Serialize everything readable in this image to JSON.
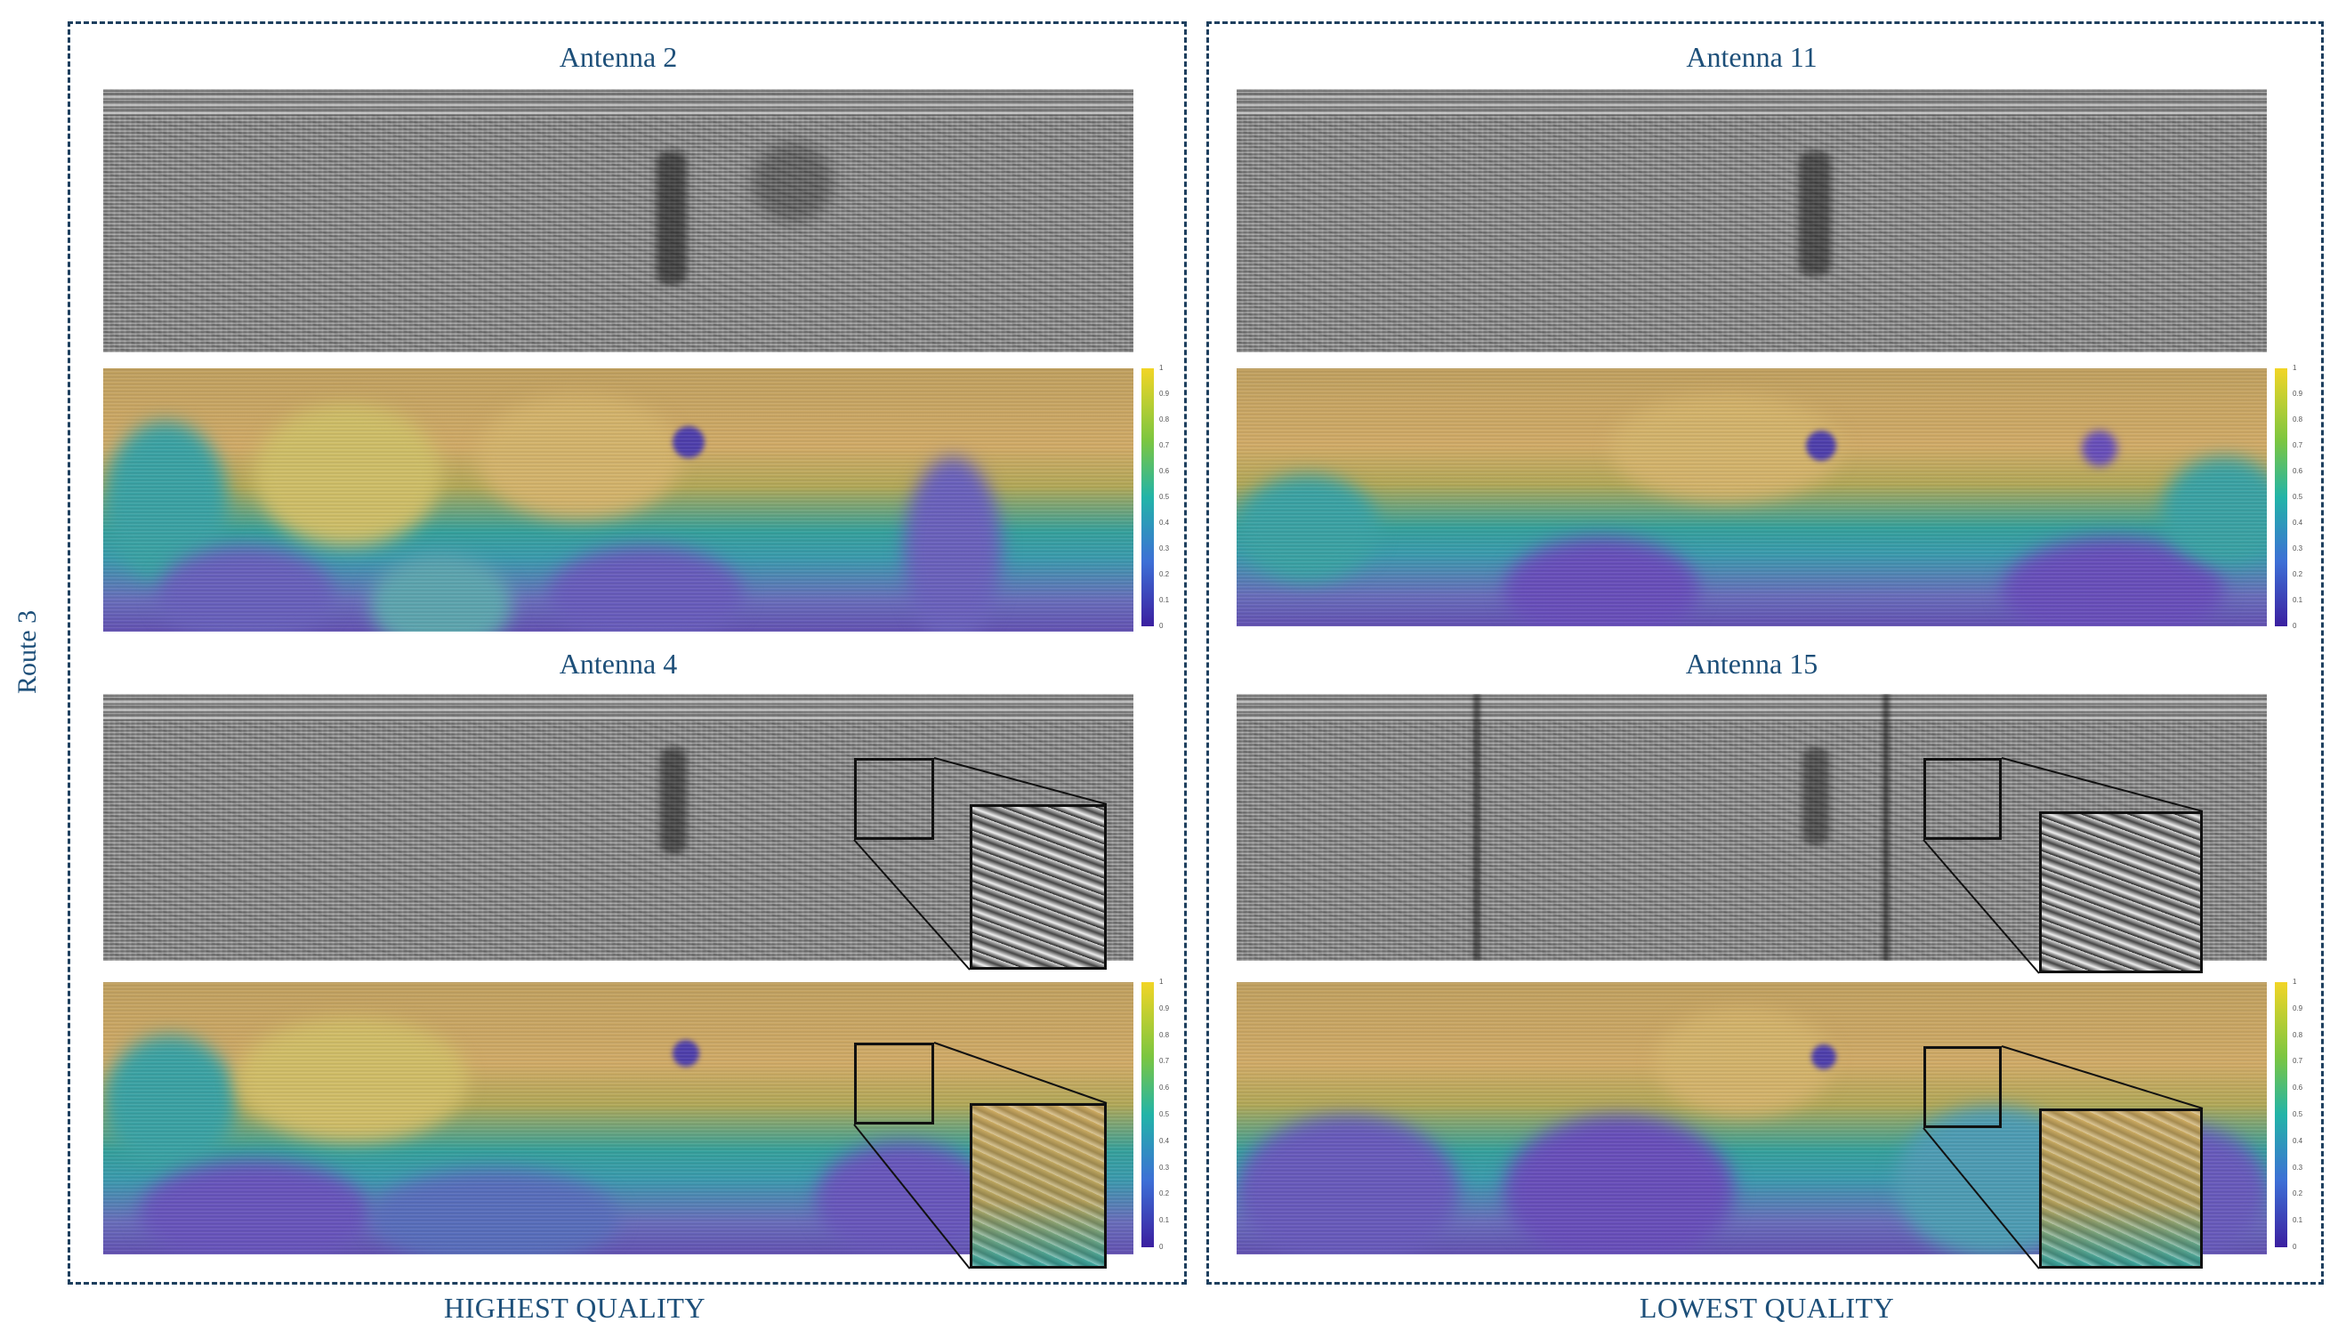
{
  "route_label": "Route 3",
  "groups": {
    "left": {
      "label": "HIGHEST QUALITY"
    },
    "right": {
      "label": "LOWEST QUALITY"
    }
  },
  "antennas": {
    "a2": {
      "title": "Antenna 2"
    },
    "a4": {
      "title": "Antenna 4"
    },
    "a11": {
      "title": "Antenna 11"
    },
    "a15": {
      "title": "Antenna 15"
    }
  },
  "colorbar_ticks": [
    "1",
    "0.9",
    "0.8",
    "0.7",
    "0.6",
    "0.5",
    "0.4",
    "0.3",
    "0.2",
    "0.1",
    "0"
  ],
  "colors": {
    "title_text": "#1d4f79",
    "box_border": "#1d3f5e",
    "heat_high": "#d7b06a",
    "heat_mid": "#36a5a0",
    "heat_low": "#6553b7"
  }
}
